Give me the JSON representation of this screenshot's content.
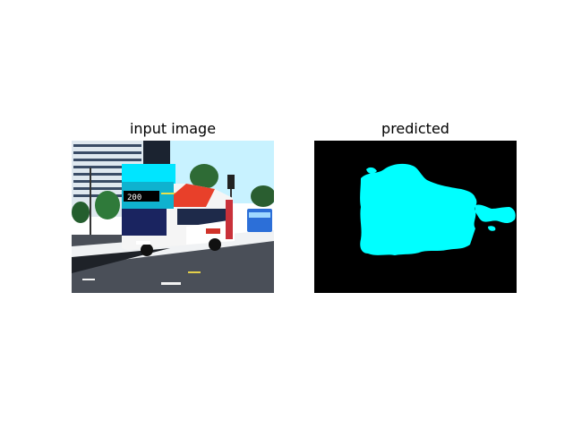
{
  "figure": {
    "panels": [
      {
        "title": "input image",
        "content": "photo",
        "bus_route_number": "200"
      },
      {
        "title": "predicted",
        "content": "segmentation-mask",
        "mask_color": "#00ffff",
        "background_color": "#000000"
      }
    ]
  }
}
